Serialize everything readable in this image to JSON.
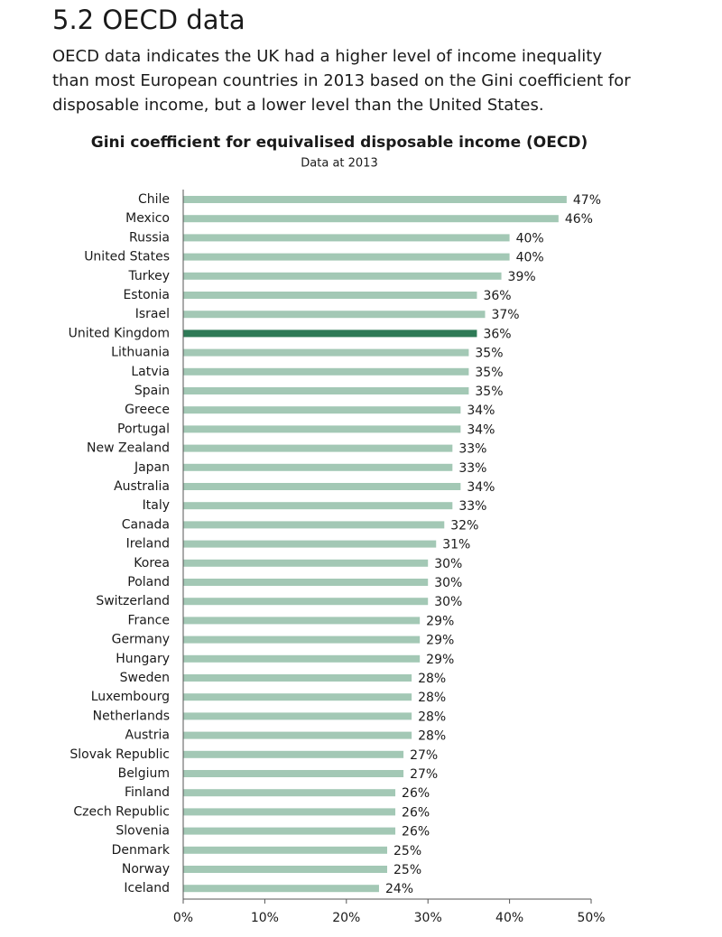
{
  "heading": "5.2 OECD data",
  "paragraph": [
    "OECD data indicates the UK had a higher level of income inequality",
    "than most European countries in 2013 based on the Gini coefficient for",
    "disposable income, but a lower level than the United States."
  ],
  "chart_data": {
    "type": "bar",
    "orientation": "horizontal",
    "title": "Gini coefficient for equivalised disposable income (OECD)",
    "subtitle": "Data at 2013",
    "categories": [
      "Chile",
      "Mexico",
      "Russia",
      "United States",
      "Turkey",
      "Estonia",
      "Israel",
      "United Kingdom",
      "Lithuania",
      "Latvia",
      "Spain",
      "Greece",
      "Portugal",
      "New Zealand",
      "Japan",
      "Australia",
      "Italy",
      "Canada",
      "Ireland",
      "Korea",
      "Poland",
      "Switzerland",
      "France",
      "Germany",
      "Hungary",
      "Sweden",
      "Luxembourg",
      "Netherlands",
      "Austria",
      "Slovak Republic",
      "Belgium",
      "Finland",
      "Czech Republic",
      "Slovenia",
      "Denmark",
      "Norway",
      "Iceland"
    ],
    "values": [
      47,
      46,
      40,
      40,
      39,
      36,
      37,
      36,
      35,
      35,
      35,
      34,
      34,
      33,
      33,
      34,
      33,
      32,
      31,
      30,
      30,
      30,
      29,
      29,
      29,
      28,
      28,
      28,
      28,
      27,
      27,
      26,
      26,
      26,
      25,
      25,
      24
    ],
    "value_labels": [
      "47%",
      "46%",
      "40%",
      "40%",
      "39%",
      "36%",
      "37%",
      "36%",
      "35%",
      "35%",
      "35%",
      "34%",
      "34%",
      "33%",
      "33%",
      "34%",
      "33%",
      "32%",
      "31%",
      "30%",
      "30%",
      "30%",
      "29%",
      "29%",
      "29%",
      "28%",
      "28%",
      "28%",
      "28%",
      "27%",
      "27%",
      "26%",
      "26%",
      "26%",
      "25%",
      "25%",
      "24%"
    ],
    "colors": [
      "#a3c8b5",
      "#a3c8b5",
      "#a3c8b5",
      "#a3c8b5",
      "#a3c8b5",
      "#a3c8b5",
      "#a3c8b5",
      "#2e7a56",
      "#a3c8b5",
      "#a3c8b5",
      "#a3c8b5",
      "#a3c8b5",
      "#a3c8b5",
      "#a3c8b5",
      "#a3c8b5",
      "#a3c8b5",
      "#a3c8b5",
      "#a3c8b5",
      "#a3c8b5",
      "#a3c8b5",
      "#a3c8b5",
      "#a3c8b5",
      "#a3c8b5",
      "#a3c8b5",
      "#a3c8b5",
      "#a3c8b5",
      "#a3c8b5",
      "#a3c8b5",
      "#a3c8b5",
      "#a3c8b5",
      "#a3c8b5",
      "#a3c8b5",
      "#a3c8b5",
      "#a3c8b5",
      "#a3c8b5",
      "#a3c8b5",
      "#a3c8b5"
    ],
    "xlim": [
      0,
      50
    ],
    "xticks": [
      {
        "value": 0,
        "label": "0%"
      },
      {
        "value": 10,
        "label": "10%"
      },
      {
        "value": 20,
        "label": "20%"
      },
      {
        "value": 30,
        "label": "30%"
      },
      {
        "value": 40,
        "label": "40%"
      },
      {
        "value": 50,
        "label": "50%"
      }
    ],
    "grid": false
  }
}
